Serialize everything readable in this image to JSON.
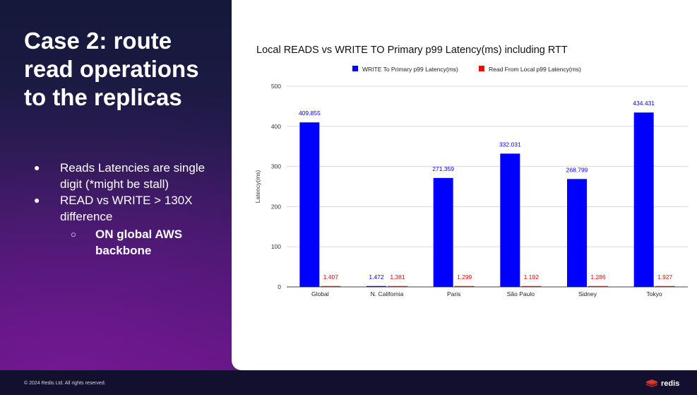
{
  "slide": {
    "title_lines": [
      "Case 2: route",
      "read operations",
      "to the replicas"
    ],
    "bullets": [
      "Reads Latencies are single digit (*might be stall)",
      "READ vs WRITE > 130X difference"
    ],
    "sub_bullet": "ON global AWS backbone",
    "copyright": "© 2024 Redis Ltd. All rights reserved.",
    "logo_text": "redis"
  },
  "colors": {
    "write": "#0000ff",
    "read": "#ff0000",
    "logo": "#dc382c"
  },
  "chart_data": {
    "type": "bar",
    "title": "Local READS vs WRITE TO Primary p99 Latency(ms) including RTT",
    "xlabel": "",
    "ylabel": "Latency(ms)",
    "ylim": [
      0,
      500
    ],
    "yticks": [
      "0",
      "100",
      "200",
      "300",
      "400",
      "500"
    ],
    "grid": true,
    "legend_position": "top",
    "categories": [
      "Global",
      "N. California",
      "Paris",
      "São Paulo",
      "Sidney",
      "Tokyo"
    ],
    "series": [
      {
        "name": "WRITE To Primary p99 Latency(ms)",
        "values": [
          409.855,
          1.472,
          271.359,
          332.031,
          268.799,
          434.431
        ],
        "labels": [
          "409.855",
          "1.472",
          "271.359",
          "332.031",
          "268.799",
          "434.431"
        ]
      },
      {
        "name": "Read From Local p99 Latency(ms)",
        "values": [
          1.407,
          1.381,
          1.299,
          1.192,
          1.286,
          1.927
        ],
        "labels": [
          "1.407",
          "1.381",
          "1.299",
          "1.192",
          "1.286",
          "1.927"
        ]
      }
    ]
  }
}
